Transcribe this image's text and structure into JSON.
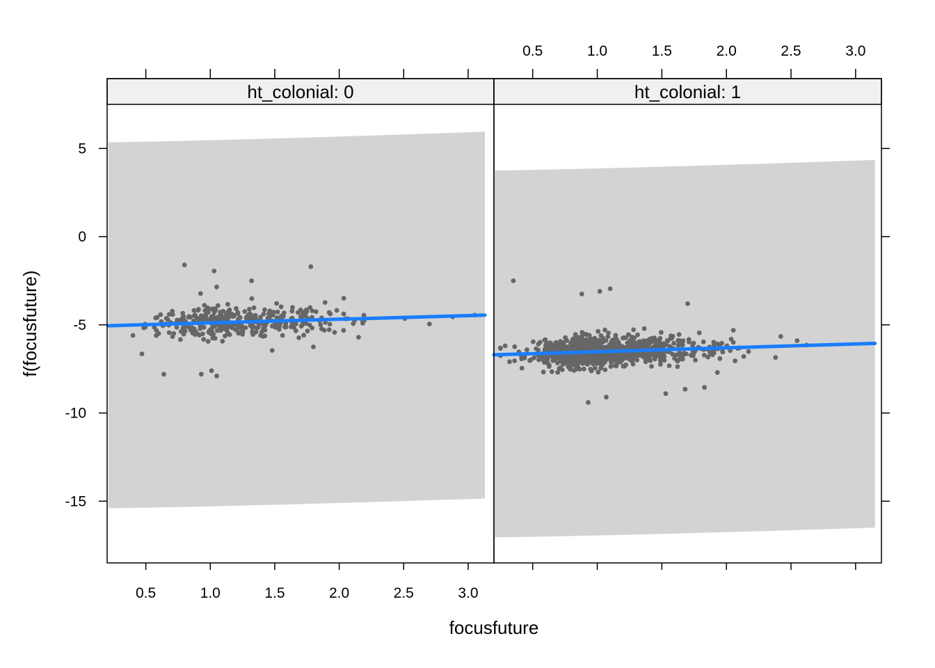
{
  "chart_data": {
    "type": "scatter",
    "xlabel": "focusfuture",
    "ylabel": "f(focusfuture)",
    "xlim": [
      0.2,
      3.2
    ],
    "ylim": [
      -18.5,
      7.5
    ],
    "x_ticks": [
      0.5,
      1.0,
      1.5,
      2.0,
      2.5,
      3.0
    ],
    "x_tick_labels": [
      "0.5",
      "1.0",
      "1.5",
      "2.0",
      "2.5",
      "3.0"
    ],
    "y_ticks": [
      5,
      0,
      -5,
      -10,
      -15
    ],
    "y_tick_labels": [
      "5",
      "0",
      "-5",
      "-10",
      "-15"
    ],
    "colors": {
      "points": "#666666",
      "fit_line": "#1a7dff",
      "band": "#d3d3d3",
      "strip": "#f0f0f0"
    },
    "panels": [
      {
        "strip_label": "ht_colonial: 0",
        "x_range": [
          0.21,
          3.13
        ],
        "fit": {
          "x": [
            0.21,
            3.13
          ],
          "y": [
            -5.05,
            -4.45
          ]
        },
        "band": {
          "upper": [
            5.35,
            5.95
          ],
          "lower": [
            -15.4,
            -14.85
          ]
        },
        "points_seed": 7,
        "points_n": 380,
        "points_center": {
          "x": 1.15,
          "y": -4.85
        },
        "highlight_points": [
          {
            "x": 0.8,
            "y": -1.6
          },
          {
            "x": 1.03,
            "y": -1.95
          },
          {
            "x": 1.78,
            "y": -1.7
          },
          {
            "x": 1.32,
            "y": -2.5
          },
          {
            "x": 1.05,
            "y": -2.85
          },
          {
            "x": 0.64,
            "y": -7.8
          },
          {
            "x": 0.93,
            "y": -7.8
          },
          {
            "x": 1.05,
            "y": -7.9
          },
          {
            "x": 1.01,
            "y": -7.6
          },
          {
            "x": 0.47,
            "y": -6.65
          },
          {
            "x": 1.48,
            "y": -6.45
          },
          {
            "x": 1.8,
            "y": -6.25
          },
          {
            "x": 2.7,
            "y": -4.95
          },
          {
            "x": 2.88,
            "y": -4.55
          },
          {
            "x": 3.05,
            "y": -4.45
          },
          {
            "x": 2.15,
            "y": -5.7
          },
          {
            "x": 0.4,
            "y": -5.6
          }
        ]
      },
      {
        "strip_label": "ht_colonial: 1",
        "x_range": [
          0.2,
          3.15
        ],
        "fit": {
          "x": [
            0.2,
            3.15
          ],
          "y": [
            -6.7,
            -6.05
          ]
        },
        "band": {
          "upper": [
            3.75,
            4.35
          ],
          "lower": [
            -17.05,
            -16.5
          ]
        },
        "points_seed": 11,
        "points_n": 900,
        "points_center": {
          "x": 1.0,
          "y": -6.5
        },
        "highlight_points": [
          {
            "x": 0.35,
            "y": -2.5
          },
          {
            "x": 1.1,
            "y": -2.95
          },
          {
            "x": 1.02,
            "y": -3.1
          },
          {
            "x": 0.88,
            "y": -3.25
          },
          {
            "x": 1.7,
            "y": -3.8
          },
          {
            "x": 0.93,
            "y": -9.4
          },
          {
            "x": 1.07,
            "y": -9.1
          },
          {
            "x": 1.53,
            "y": -8.9
          },
          {
            "x": 1.68,
            "y": -8.65
          },
          {
            "x": 1.83,
            "y": -8.55
          },
          {
            "x": 1.93,
            "y": -7.7
          },
          {
            "x": 2.62,
            "y": -6.15
          },
          {
            "x": 2.38,
            "y": -6.85
          },
          {
            "x": 2.1,
            "y": -6.3
          }
        ]
      }
    ]
  }
}
